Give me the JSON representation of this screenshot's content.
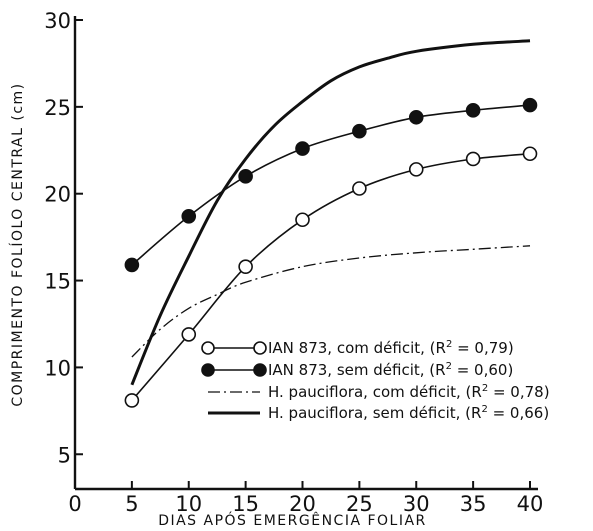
{
  "chart_data": {
    "type": "line",
    "title": "",
    "xlabel": "DIAS   APÓS   EMERGÊNCIA   FOLIAR",
    "ylabel": "COMPRIMENTO FOLÍOLO CENTRAL (cm)",
    "xlim": [
      0,
      40
    ],
    "ylim": [
      3,
      30
    ],
    "xticks": [
      0,
      5,
      10,
      15,
      20,
      25,
      30,
      35,
      40
    ],
    "yticks": [
      5,
      10,
      15,
      20,
      25,
      30
    ],
    "grid": false,
    "legend_position": "lower-right",
    "series": [
      {
        "name": "IAN 873, com déficit",
        "r2": "0,79",
        "style": "open-circle-line",
        "color": "#111111",
        "points": [
          [
            5,
            8.1
          ],
          [
            10,
            11.9
          ],
          [
            15,
            15.8
          ],
          [
            20,
            18.5
          ],
          [
            25,
            20.3
          ],
          [
            30,
            21.4
          ],
          [
            35,
            22.0
          ],
          [
            40,
            22.3
          ]
        ]
      },
      {
        "name": "IAN 873, sem déficit",
        "r2": "0,60",
        "style": "filled-circle-line",
        "color": "#111111",
        "points": [
          [
            5,
            15.9
          ],
          [
            10,
            18.7
          ],
          [
            15,
            21.0
          ],
          [
            20,
            22.6
          ],
          [
            25,
            23.6
          ],
          [
            30,
            24.4
          ],
          [
            35,
            24.8
          ],
          [
            40,
            25.1
          ]
        ]
      },
      {
        "name": "H. pauciflora, com déficit",
        "r2": "0,78",
        "style": "dash-dot-line",
        "color": "#111111",
        "points": [
          [
            5,
            10.6
          ],
          [
            7.5,
            12.2
          ],
          [
            10,
            13.4
          ],
          [
            12.5,
            14.2
          ],
          [
            15,
            14.9
          ],
          [
            20,
            15.8
          ],
          [
            25,
            16.3
          ],
          [
            30,
            16.6
          ],
          [
            35,
            16.8
          ],
          [
            40,
            17.0
          ]
        ]
      },
      {
        "name": "H. pauciflora, sem déficit",
        "r2": "0,66",
        "style": "solid-thick-line",
        "color": "#111111",
        "points": [
          [
            5,
            9.0
          ],
          [
            7.5,
            13.0
          ],
          [
            10,
            16.4
          ],
          [
            12.5,
            19.6
          ],
          [
            15,
            22.0
          ],
          [
            17.5,
            23.9
          ],
          [
            20,
            25.3
          ],
          [
            22.5,
            26.5
          ],
          [
            25,
            27.3
          ],
          [
            27.5,
            27.8
          ],
          [
            30,
            28.2
          ],
          [
            35,
            28.6
          ],
          [
            40,
            28.8
          ]
        ]
      }
    ]
  }
}
